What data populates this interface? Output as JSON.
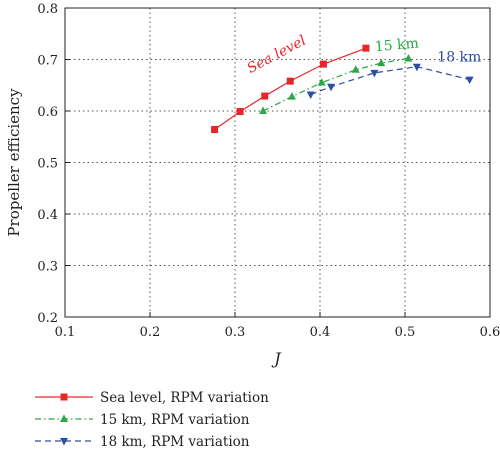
{
  "chart_data": {
    "type": "line",
    "xlabel": "J",
    "ylabel": "Propeller efficiency",
    "xlim": [
      0.1,
      0.6
    ],
    "ylim": [
      0.2,
      0.8
    ],
    "xticks": [
      "0.1",
      "0.2",
      "0.3",
      "0.4",
      "0.5",
      "0.6"
    ],
    "yticks": [
      "0.2",
      "0.3",
      "0.4",
      "0.5",
      "0.6",
      "0.7",
      "0.8"
    ],
    "grid": true,
    "legend_position": "bottom",
    "series": [
      {
        "name": "Sea level, RPM variation",
        "color": "#e8262a",
        "marker": "square",
        "linestyle": "solid",
        "x": [
          0.276,
          0.306,
          0.335,
          0.365,
          0.404,
          0.454
        ],
        "y": [
          0.564,
          0.599,
          0.629,
          0.658,
          0.691,
          0.722
        ]
      },
      {
        "name": "15 km, RPM variation",
        "color": "#2aa845",
        "marker": "triangle-up",
        "linestyle": "dashdot",
        "x": [
          0.333,
          0.367,
          0.402,
          0.442,
          0.472,
          0.504
        ],
        "y": [
          0.6,
          0.628,
          0.655,
          0.68,
          0.693,
          0.702
        ]
      },
      {
        "name": "18 km, RPM variation",
        "color": "#2d4fa3",
        "marker": "triangle-down",
        "linestyle": "dashed",
        "x": [
          0.389,
          0.413,
          0.464,
          0.514,
          0.576
        ],
        "y": [
          0.632,
          0.647,
          0.674,
          0.686,
          0.661
        ]
      }
    ],
    "annotations": [
      {
        "text": "Sea level",
        "color": "#e8262a",
        "italic": true
      },
      {
        "text": "15 km",
        "color": "#2aa845",
        "italic": false
      },
      {
        "text": "18 km",
        "color": "#2d4fa3",
        "italic": false
      }
    ]
  }
}
